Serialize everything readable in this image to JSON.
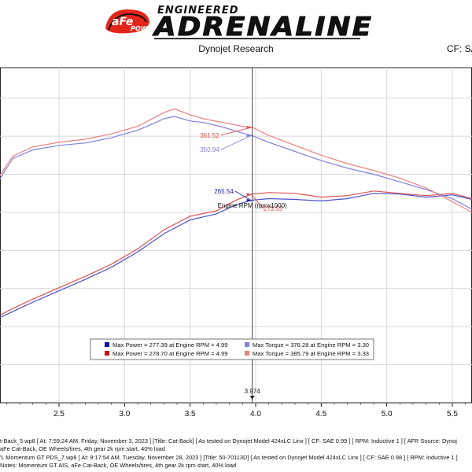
{
  "header": {
    "brand_badge": "aFe POWER",
    "brand_top": "ENGINEERED",
    "brand_main": "ADRENALINE",
    "company": "Dynojet Research",
    "cf_label": "CF: SA"
  },
  "notes": {
    "line1": "t-Back_5.wp8 [ At: 7:59:24 AM, Friday, November 3, 2023 ] [Title: Cat-Back] [ As tested on Dynojet Model 424xLC Linx ] [ CF: SAE 0.99 ] [ RPM: Inductive 1 ] [ AFR Source: Dynoj",
    "line2": "aFe Cat-Back, OE Wheels/tires, 4th gear 2k rpm start, 40% load",
    "line3": "'L Momentum GT PDS_7.wp8 [ At: 9:17:54 AM, Tuesday, November 28, 2023 ] [Title: 50-70113D] [ As tested on Dynojet Model 424xLC Linx ] [ CF: SAE 0.98 ] [ RPM: Inductive 1 ]",
    "line4": "Notes: Momentum GT AIS, aFe Cat-Back, OE Wheels/tires, 4th gear 2k rpm start, 40% load"
  },
  "chart_data": {
    "type": "line",
    "xlabel": "Engine RPM (rpmx1000)",
    "x_ticks": [
      "2.5",
      "3.0",
      "3.5",
      "4.0",
      "4.5",
      "5.0",
      "5.5"
    ],
    "xlim": [
      2.05,
      5.65
    ],
    "ylim": [
      0,
      440
    ],
    "cursor": {
      "x": 3.974,
      "label": "3.974"
    },
    "colors": {
      "blue": "#4d52cc",
      "red": "#e05050",
      "blue_light": "#8080dd",
      "red_light": "#ee7f7f"
    },
    "series": [
      {
        "kind": "power",
        "color": "#4d52cc",
        "x": [
          2.05,
          2.15,
          2.3,
          2.5,
          2.7,
          2.9,
          3.1,
          3.3,
          3.5,
          3.7,
          3.85,
          3.97,
          4.1,
          4.3,
          4.5,
          4.7,
          4.9,
          5.1,
          5.3,
          5.5,
          5.65
        ],
        "y": [
          112,
          120,
          132,
          147,
          162,
          178,
          198,
          222,
          240,
          248,
          260,
          266,
          268,
          267,
          265,
          268,
          275,
          274,
          270,
          273,
          267
        ]
      },
      {
        "kind": "power",
        "color": "#e05050",
        "x": [
          2.05,
          2.15,
          2.3,
          2.5,
          2.7,
          2.9,
          3.1,
          3.3,
          3.5,
          3.7,
          3.85,
          3.97,
          4.1,
          4.3,
          4.5,
          4.7,
          4.9,
          5.1,
          5.3,
          5.5,
          5.65
        ],
        "y": [
          115,
          124,
          136,
          151,
          166,
          182,
          202,
          227,
          245,
          252,
          266,
          274,
          276,
          275,
          270,
          272,
          278,
          275,
          272,
          275,
          268
        ]
      },
      {
        "kind": "torque",
        "color": "#8080dd",
        "x": [
          2.05,
          2.1,
          2.15,
          2.3,
          2.5,
          2.7,
          2.9,
          3.1,
          3.2,
          3.3,
          3.38,
          3.5,
          3.6,
          3.75,
          3.9,
          3.97,
          4.1,
          4.3,
          4.5,
          4.7,
          4.9,
          5.1,
          5.3,
          5.5,
          5.65
        ],
        "y": [
          294,
          308,
          321,
          332,
          338,
          341,
          348,
          358,
          365,
          373,
          376,
          370,
          368,
          362,
          354,
          351,
          342,
          330,
          318,
          308,
          300,
          290,
          280,
          268,
          254
        ]
      },
      {
        "kind": "torque",
        "color": "#ee7f7f",
        "x": [
          2.05,
          2.1,
          2.15,
          2.3,
          2.5,
          2.7,
          2.9,
          3.1,
          3.2,
          3.3,
          3.38,
          3.5,
          3.6,
          3.75,
          3.9,
          3.97,
          4.1,
          4.3,
          4.5,
          4.7,
          4.9,
          5.1,
          5.3,
          5.5,
          5.65
        ],
        "y": [
          298,
          312,
          324,
          336,
          342,
          346,
          353,
          363,
          372,
          381,
          386,
          378,
          373,
          368,
          363,
          362,
          351,
          338,
          325,
          314,
          305,
          295,
          282,
          264,
          250
        ]
      }
    ],
    "cursor_labels": [
      {
        "value": "361.52",
        "color": "#e05050",
        "y": 361.52
      },
      {
        "value": "350.94",
        "color": "#8080dd",
        "y": 350.94
      },
      {
        "value": "265.54",
        "color": "#2222aa",
        "y": 265.54
      },
      {
        "value": "273.53",
        "color": "#e05050",
        "y": 273.53
      }
    ],
    "legend": [
      {
        "swatch": "#1010aa",
        "text": "Max Power = 277.39 at Engine RPM = 4.99",
        "swatch2": "#8080dd",
        "text2": "Max Torque = 376.28 at Engine RPM = 3.30"
      },
      {
        "swatch": "#cc1010",
        "text": "Max Power = 278.70 at Engine RPM = 4.99",
        "swatch2": "#ee7f7f",
        "text2": "Max Torque = 385.79 at Engine RPM = 3.33"
      }
    ]
  }
}
